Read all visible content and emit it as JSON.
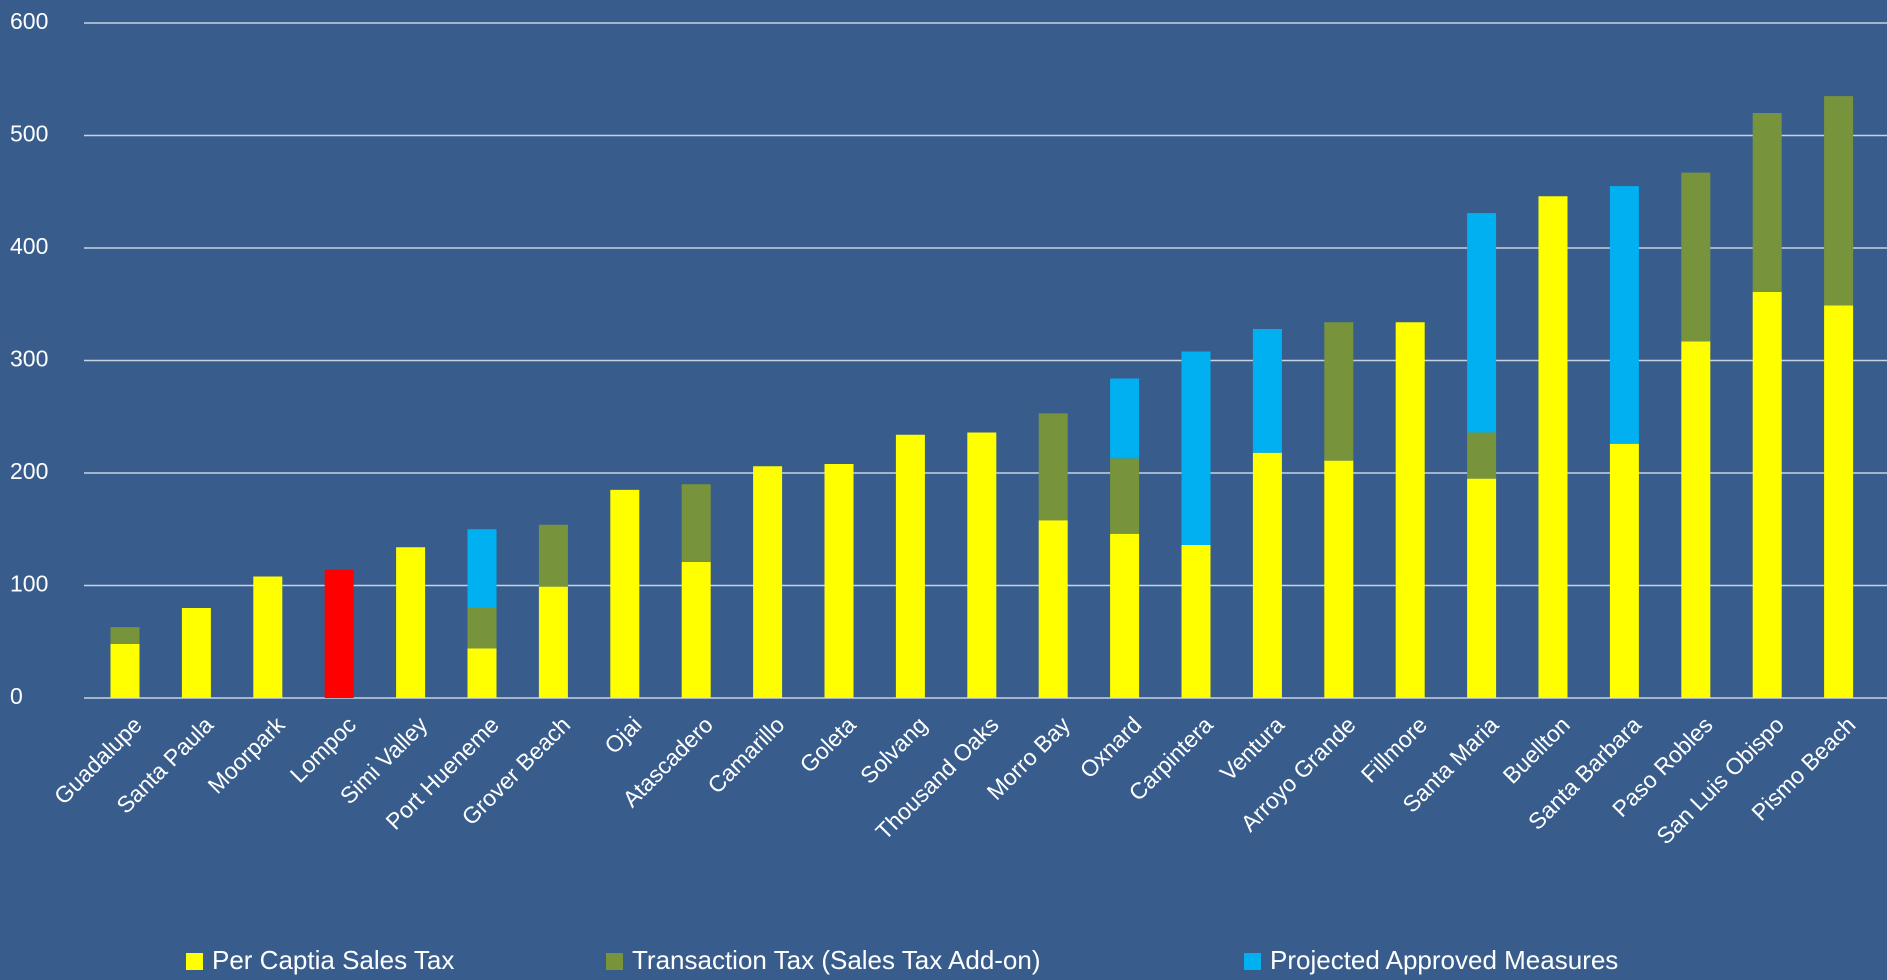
{
  "chart_data": {
    "type": "stacked_bar",
    "categories": [
      "Guadalupe",
      "Santa Paula",
      "Moorpark",
      "Lompoc",
      "Simi Valley",
      "Port Hueneme",
      "Grover Beach",
      "Ojai",
      "Atascadero",
      "Camarillo",
      "Goleta",
      "Solvang",
      "Thousand Oaks",
      "Morro Bay",
      "Oxnard",
      "Carpintera",
      "Ventura",
      "Arroyo Grande",
      "Fillmore",
      "Santa Maria",
      "Buellton",
      "Santa Barbara",
      "Paso Robles",
      "San Luis Obispo",
      "Pismo Beach"
    ],
    "series": [
      {
        "name": "Per Captia Sales Tax",
        "color": "#ffff00",
        "colors": [
          "#ffff00",
          "#ffff00",
          "#ffff00",
          "#ff0000",
          "#ffff00",
          "#ffff00",
          "#ffff00",
          "#ffff00",
          "#ffff00",
          "#ffff00",
          "#ffff00",
          "#ffff00",
          "#ffff00",
          "#ffff00",
          "#ffff00",
          "#ffff00",
          "#ffff00",
          "#ffff00",
          "#ffff00",
          "#ffff00",
          "#ffff00",
          "#ffff00",
          "#ffff00",
          "#ffff00",
          "#ffff00"
        ],
        "values": [
          48,
          80,
          108,
          114,
          134,
          44,
          99,
          185,
          121,
          206,
          208,
          234,
          236,
          158,
          146,
          136,
          218,
          211,
          334,
          195,
          446,
          226,
          317,
          361,
          349
        ]
      },
      {
        "name": "Transaction Tax (Sales Tax Add-on)",
        "color": "#77933c",
        "values": [
          15,
          0,
          0,
          0,
          0,
          36,
          55,
          0,
          69,
          0,
          0,
          0,
          0,
          95,
          67,
          0,
          0,
          123,
          0,
          41,
          0,
          0,
          150,
          159,
          186
        ]
      },
      {
        "name": "Projected Approved Measures",
        "color": "#00b0f0",
        "values": [
          0,
          0,
          0,
          0,
          0,
          70,
          0,
          0,
          0,
          0,
          0,
          0,
          0,
          0,
          71,
          172,
          110,
          0,
          0,
          195,
          0,
          229,
          0,
          0,
          0
        ]
      }
    ],
    "ylim": [
      0,
      600
    ],
    "yticks": [
      0,
      100,
      200,
      300,
      400,
      500,
      600
    ],
    "grid": true,
    "legend": "bottom"
  }
}
